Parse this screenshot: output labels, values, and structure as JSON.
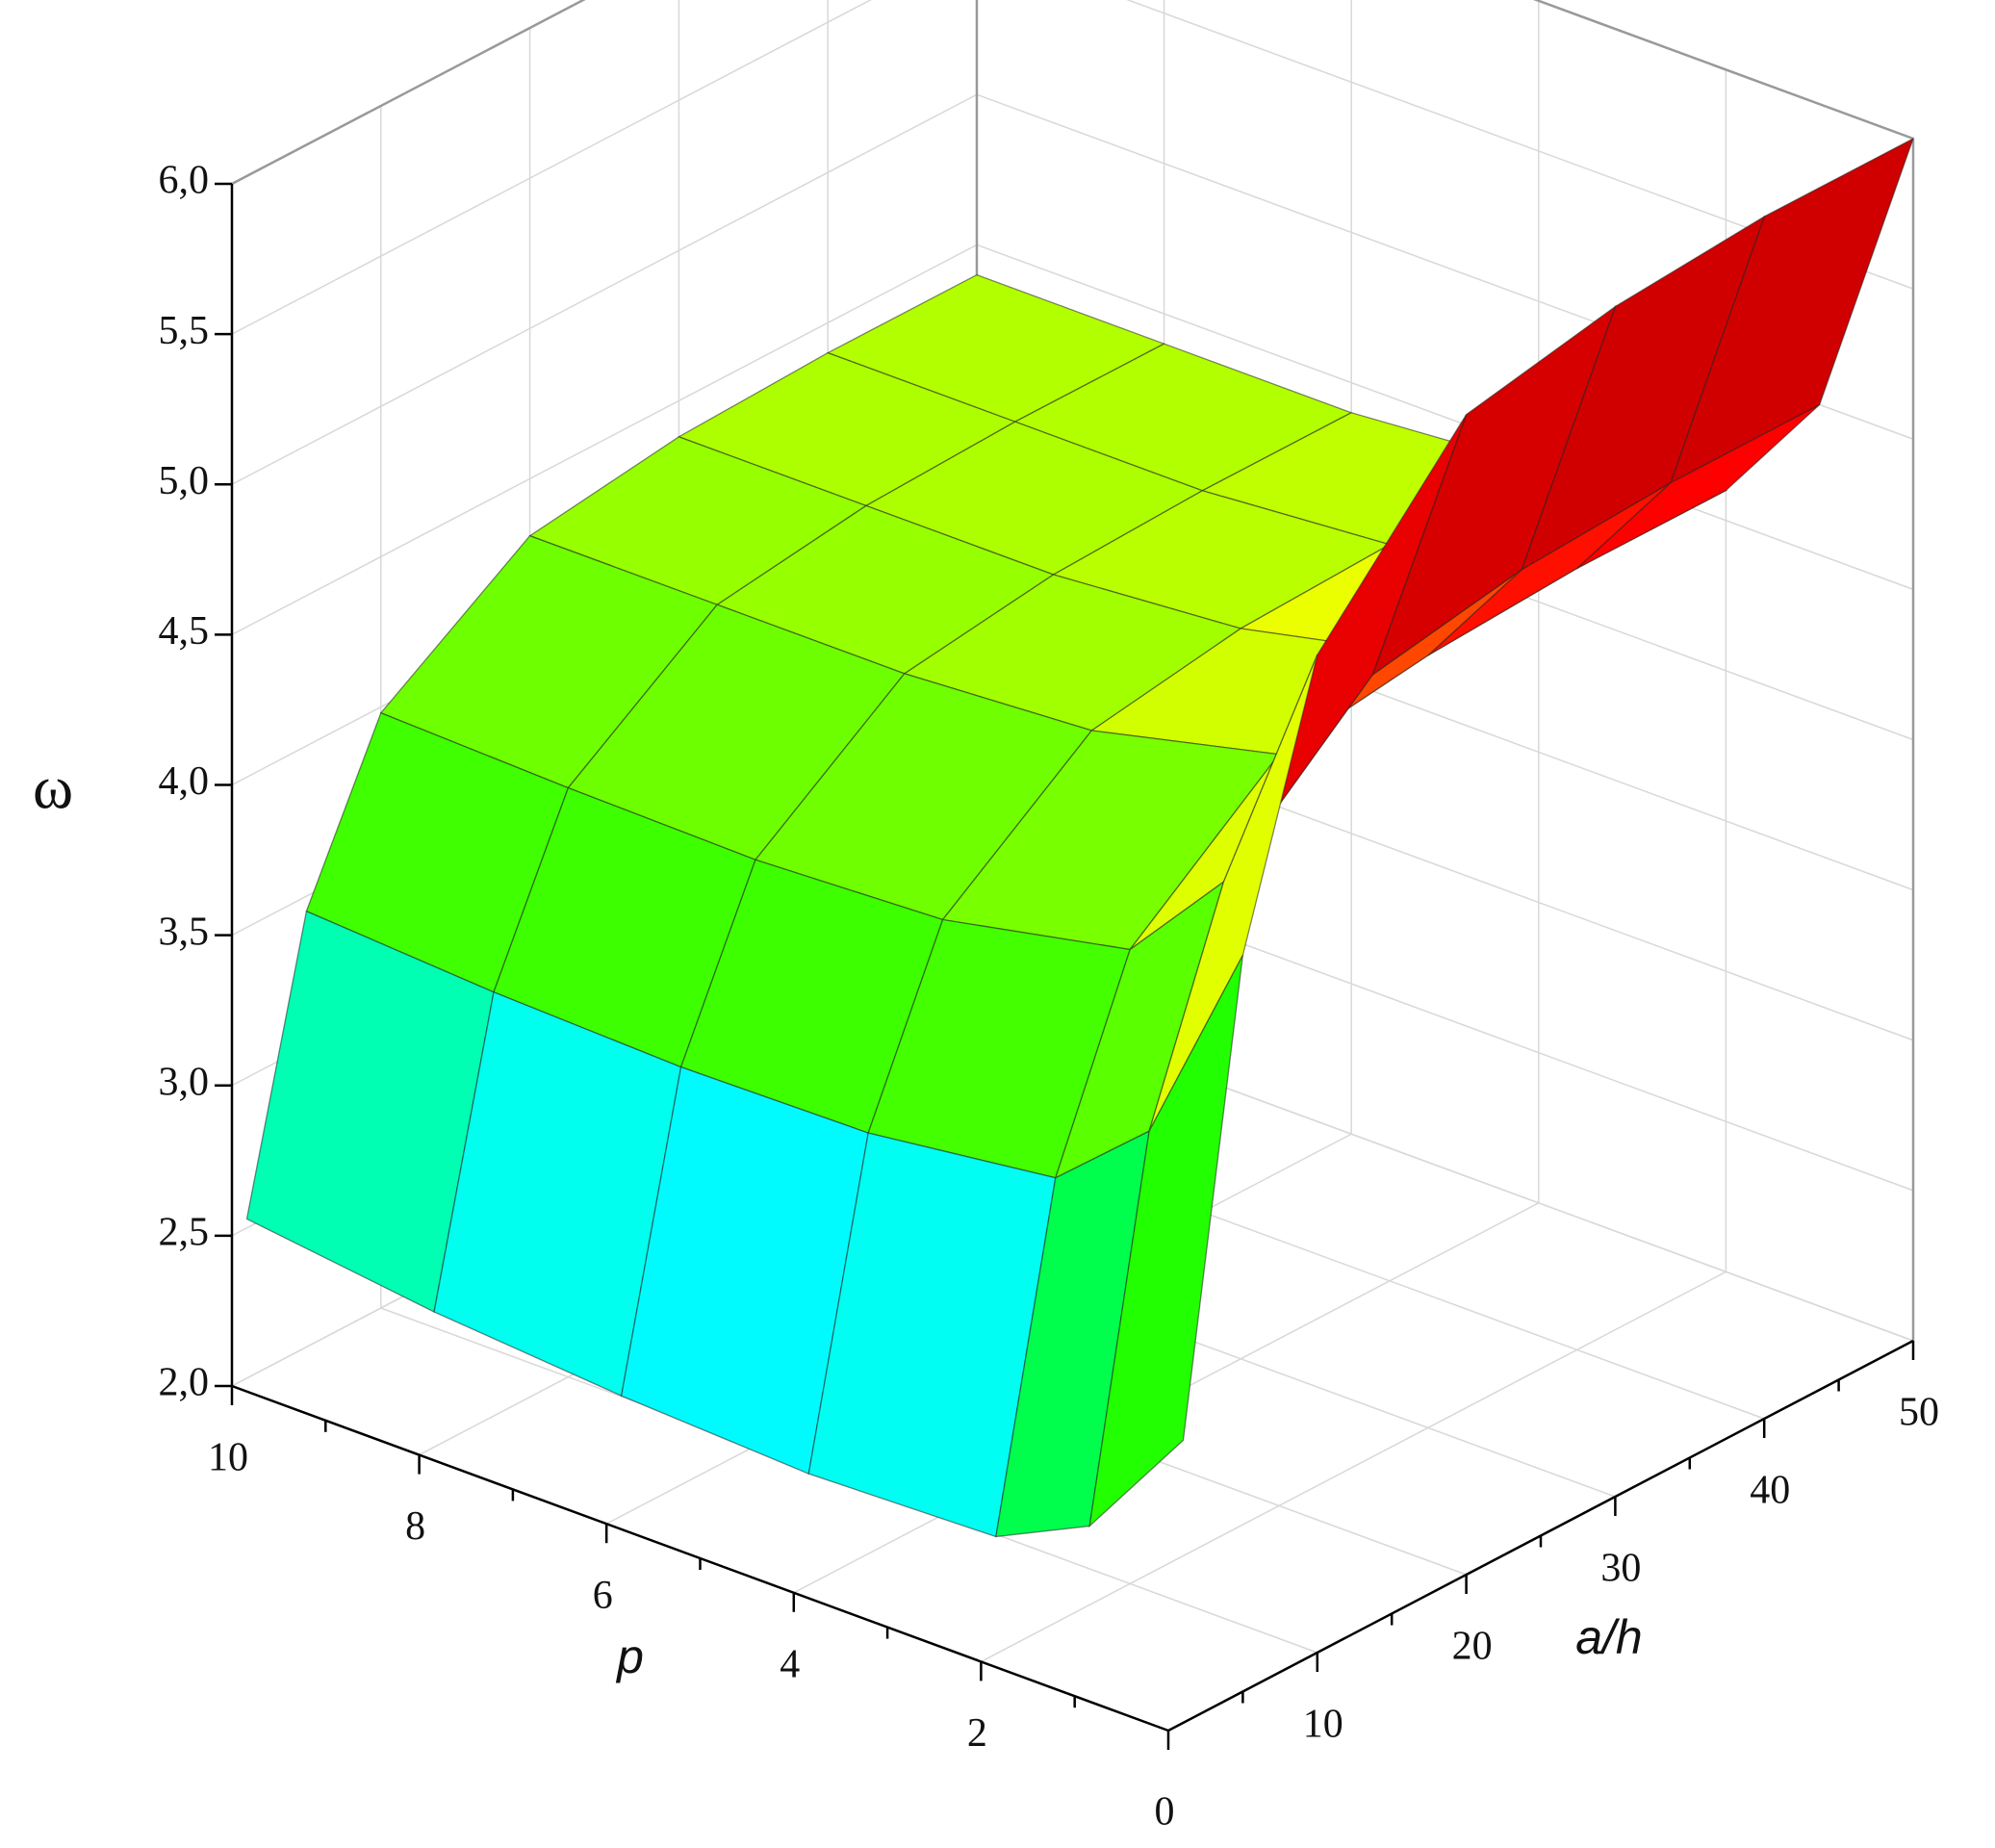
{
  "chart_data": {
    "type": "surface",
    "xlabel": "a/h",
    "ylabel": "p",
    "zlabel": "ω",
    "x": [
      1,
      5,
      10,
      20,
      30,
      40,
      50
    ],
    "y": [
      0,
      1,
      2,
      4,
      6,
      8,
      10
    ],
    "z": [
      [
        2.94,
        4.45,
        5.32,
        5.86,
        5.96,
        6.0,
        6.0
      ],
      [
        2.54,
        3.75,
        4.45,
        4.88,
        4.97,
        5.0,
        5.0
      ],
      [
        2.39,
        3.48,
        4.11,
        4.5,
        4.57,
        4.6,
        4.6
      ],
      [
        2.37,
        3.4,
        3.98,
        4.35,
        4.43,
        4.45,
        4.45
      ],
      [
        2.4,
        3.39,
        3.95,
        4.31,
        4.38,
        4.4,
        4.4
      ],
      [
        2.45,
        3.41,
        3.96,
        4.31,
        4.38,
        4.4,
        4.4
      ],
      [
        2.53,
        3.45,
        3.98,
        4.31,
        4.38,
        4.4,
        4.4
      ]
    ],
    "xlim": [
      0,
      50
    ],
    "xticks": [
      10,
      20,
      30,
      40,
      50
    ],
    "ylim": [
      0,
      10
    ],
    "yticks": [
      0,
      2,
      4,
      6,
      8,
      10
    ],
    "zlim": [
      2,
      6
    ],
    "zticks": [
      {
        "value": 2,
        "label": "2,0"
      },
      {
        "value": 2.5,
        "label": "2,5"
      },
      {
        "value": 3,
        "label": "3,0"
      },
      {
        "value": 3.5,
        "label": "3,5"
      },
      {
        "value": 4,
        "label": "4,0"
      },
      {
        "value": 4.5,
        "label": "4,5"
      },
      {
        "value": 5,
        "label": "5,0"
      },
      {
        "value": 5.5,
        "label": "5,5"
      },
      {
        "value": 6,
        "label": "6,0"
      }
    ],
    "grid": true,
    "colormap": [
      [
        2.0,
        "#3a0050"
      ],
      [
        2.3,
        "#0000ff"
      ],
      [
        2.9,
        "#00ffff"
      ],
      [
        3.1,
        "#00ff00"
      ],
      [
        4.3,
        "#7fff00"
      ],
      [
        4.55,
        "#ffff00"
      ],
      [
        4.8,
        "#ff0000"
      ],
      [
        5.5,
        "#d00000"
      ],
      [
        6.0,
        "#200000"
      ]
    ]
  }
}
